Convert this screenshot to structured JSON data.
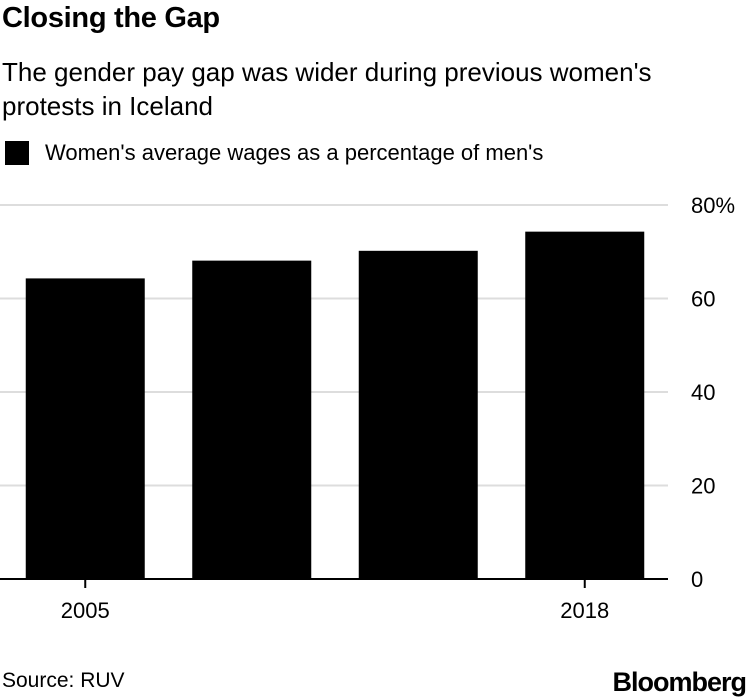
{
  "title": "Closing the Gap",
  "subtitle": "The gender pay gap was wider during previous women's protests in Iceland",
  "legend": {
    "label": "Women's average wages as a percentage of men's"
  },
  "source": "Source: RUV",
  "brand": "Bloomberg",
  "colors": {
    "bar": "#000000",
    "grid": "#dddddd",
    "axis": "#000000"
  },
  "chart_data": {
    "type": "bar",
    "categories": [
      "2005",
      "",
      "",
      "2018"
    ],
    "values": [
      64.3,
      68.1,
      70.2,
      74.3
    ],
    "series": [
      {
        "name": "Women's average wages as a percentage of men's",
        "values": [
          64.3,
          68.1,
          70.2,
          74.3
        ]
      }
    ],
    "ylim": [
      0,
      80
    ],
    "y_ticks": [
      {
        "value": 0,
        "label": "0"
      },
      {
        "value": 20,
        "label": "20"
      },
      {
        "value": 40,
        "label": "40"
      },
      {
        "value": 60,
        "label": "60"
      },
      {
        "value": 80,
        "label": "80%"
      }
    ],
    "x_tick_labels": [
      "2005",
      "2018"
    ],
    "grid": true,
    "y_axis_side": "right",
    "legend_position": "top-left",
    "xlabel": "",
    "ylabel": ""
  }
}
